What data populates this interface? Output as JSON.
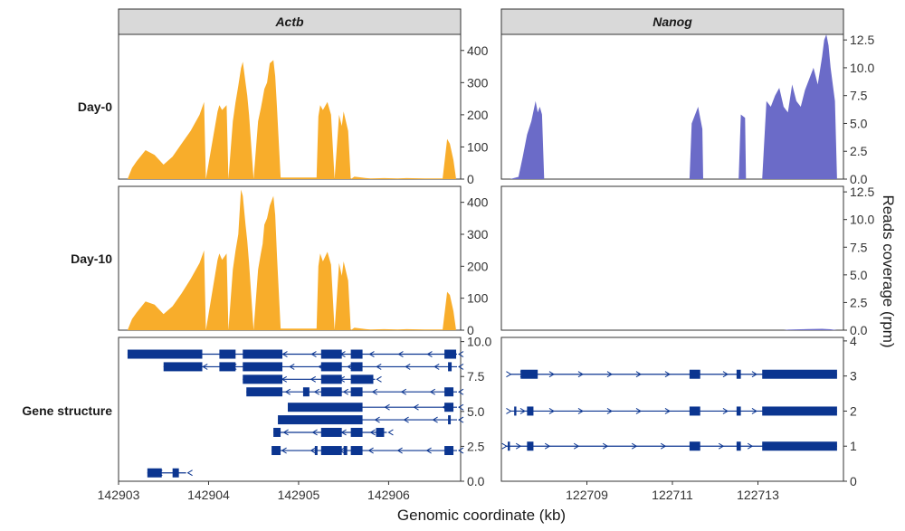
{
  "figure": {
    "x_axis_title": "Genomic coordinate (kb)",
    "y_axis_title": "Reads coverage (rpm)",
    "panel_titles": [
      "Actb",
      "Nanog"
    ],
    "row_labels": [
      "Day-0",
      "Day-10",
      "Gene structure"
    ]
  },
  "colors": {
    "actb_coverage": "#F8AD2B",
    "nanog_coverage": "#6B6BC8",
    "gene": "#0B3590",
    "strip_bg": "#D9D9D9"
  },
  "chart_data": [
    {
      "type": "area",
      "gene": "Actb",
      "condition": "Day-0",
      "ylim": [
        0,
        450
      ],
      "yticks": [
        "0",
        "100",
        "200",
        "300",
        "400"
      ],
      "x": [
        142903.1,
        142903.15,
        142903.2,
        142903.3,
        142903.4,
        142903.5,
        142903.6,
        142903.7,
        142903.8,
        142903.9,
        142903.95,
        142903.97,
        142904.1,
        142904.12,
        142904.15,
        142904.2,
        142904.22,
        142904.27,
        142904.3,
        142904.33,
        142904.36,
        142904.38,
        142904.41,
        142904.43,
        142904.45,
        142904.5,
        142904.55,
        142904.58,
        142904.6,
        142904.62,
        142904.65,
        142904.68,
        142904.72,
        142904.74,
        142904.76,
        142904.8,
        142904.85,
        142905.0,
        142905.2,
        142905.22,
        142905.24,
        142905.27,
        142905.32,
        142905.36,
        142905.4,
        142905.45,
        142905.48,
        142905.5,
        142905.55,
        142905.58,
        142905.62,
        142905.7,
        142905.75,
        142905.8,
        142905.95,
        142906.1,
        142906.2,
        142906.4,
        142906.6,
        142906.65,
        142906.68,
        142906.72,
        142906.75
      ],
      "values": [
        0,
        35,
        55,
        90,
        75,
        45,
        70,
        110,
        150,
        200,
        240,
        0,
        210,
        230,
        215,
        230,
        0,
        180,
        240,
        290,
        345,
        365,
        300,
        260,
        200,
        0,
        180,
        220,
        250,
        280,
        300,
        360,
        370,
        320,
        220,
        5,
        5,
        5,
        5,
        195,
        230,
        215,
        240,
        200,
        0,
        200,
        165,
        210,
        150,
        0,
        8,
        5,
        3,
        2,
        3,
        2,
        3,
        2,
        2,
        125,
        110,
        60,
        0
      ]
    },
    {
      "type": "area",
      "gene": "Actb",
      "condition": "Day-10",
      "ylim": [
        0,
        450
      ],
      "yticks": [
        "0",
        "100",
        "200",
        "300",
        "400"
      ],
      "x": [
        142903.1,
        142903.15,
        142903.2,
        142903.3,
        142903.4,
        142903.5,
        142903.6,
        142903.7,
        142903.8,
        142903.9,
        142903.95,
        142903.97,
        142904.1,
        142904.12,
        142904.15,
        142904.2,
        142904.22,
        142904.27,
        142904.3,
        142904.33,
        142904.36,
        142904.38,
        142904.41,
        142904.43,
        142904.45,
        142904.5,
        142904.55,
        142904.58,
        142904.6,
        142904.62,
        142904.65,
        142904.68,
        142904.72,
        142904.74,
        142904.76,
        142904.8,
        142904.85,
        142905.0,
        142905.2,
        142905.22,
        142905.24,
        142905.27,
        142905.32,
        142905.36,
        142905.4,
        142905.45,
        142905.48,
        142905.5,
        142905.55,
        142905.58,
        142905.62,
        142905.7,
        142905.75,
        142905.8,
        142905.95,
        142906.1,
        142906.2,
        142906.4,
        142906.6,
        142906.65,
        142906.68,
        142906.72,
        142906.75
      ],
      "values": [
        0,
        35,
        55,
        90,
        80,
        50,
        75,
        115,
        160,
        210,
        250,
        0,
        220,
        240,
        220,
        240,
        0,
        190,
        250,
        300,
        440,
        420,
        330,
        280,
        210,
        0,
        190,
        240,
        270,
        330,
        350,
        390,
        420,
        360,
        230,
        5,
        5,
        5,
        5,
        200,
        240,
        215,
        245,
        205,
        0,
        210,
        170,
        215,
        155,
        0,
        8,
        5,
        3,
        2,
        3,
        2,
        3,
        2,
        2,
        120,
        110,
        60,
        0
      ]
    },
    {
      "type": "area",
      "gene": "Nanog",
      "condition": "Day-0",
      "ylim": [
        0,
        13
      ],
      "yticks": [
        "0.0",
        "2.5",
        "5.0",
        "7.5",
        "10.0",
        "12.5"
      ],
      "x": [
        122707.2,
        122707.4,
        122707.5,
        122707.6,
        122707.7,
        122707.8,
        122707.85,
        122707.9,
        122707.95,
        122708.0,
        122711.4,
        122711.45,
        122711.55,
        122711.6,
        122711.65,
        122711.7,
        122711.72,
        122712.55,
        122712.6,
        122712.7,
        122712.72,
        122713.1,
        122713.2,
        122713.3,
        122713.4,
        122713.5,
        122713.6,
        122713.7,
        122713.8,
        122713.9,
        122714.0,
        122714.1,
        122714.2,
        122714.3,
        122714.4,
        122714.5,
        122714.55,
        122714.6,
        122714.65,
        122714.7,
        122714.75,
        122714.8,
        122714.85
      ],
      "values": [
        0,
        0.2,
        2,
        4,
        5.2,
        7,
        6,
        6.5,
        5.8,
        0,
        0,
        5,
        6,
        6.5,
        5.5,
        4.5,
        0,
        0,
        5.8,
        5.5,
        0,
        0,
        7,
        6.5,
        7.5,
        8.2,
        6.5,
        6,
        8.5,
        7,
        6.5,
        8,
        9,
        10,
        8.5,
        11,
        12.5,
        13,
        12,
        10,
        8.5,
        7,
        0
      ]
    },
    {
      "type": "area",
      "gene": "Nanog",
      "condition": "Day-10",
      "ylim": [
        0,
        13
      ],
      "yticks": [
        "0.0",
        "2.5",
        "5.0",
        "7.5",
        "10.0",
        "12.5"
      ],
      "x": [
        122707.2,
        122713.6,
        122713.7,
        122714.0,
        122714.2,
        122714.5,
        122714.7,
        122714.85
      ],
      "values": [
        0,
        0,
        0.05,
        0.08,
        0.1,
        0.12,
        0.08,
        0
      ]
    },
    {
      "type": "gene-structure",
      "gene": "Actb",
      "xlim": [
        142903.0,
        142906.8
      ],
      "ylim": [
        0,
        10.3
      ],
      "xticks": [
        "142903",
        "142904",
        "142905",
        "142906"
      ],
      "yticks": [
        "0.0",
        "2.5",
        "5.0",
        "7.5",
        "10.0"
      ],
      "strand": "-",
      "transcripts": [
        {
          "y": 9.1,
          "start": 142903.1,
          "end": 142906.76,
          "exons": [
            [
              142903.1,
              142903.93
            ],
            [
              142904.12,
              142904.3
            ],
            [
              142904.38,
              142904.82
            ],
            [
              142905.25,
              142905.48
            ],
            [
              142905.58,
              142905.71
            ],
            [
              142906.62,
              142906.75
            ]
          ]
        },
        {
          "y": 8.2,
          "start": 142903.5,
          "end": 142906.76,
          "exons": [
            [
              142903.5,
              142903.93
            ],
            [
              142904.12,
              142904.3
            ],
            [
              142904.38,
              142904.82
            ],
            [
              142905.25,
              142905.48
            ],
            [
              142905.58,
              142905.71
            ],
            [
              142906.66,
              142906.7
            ]
          ]
        },
        {
          "y": 7.3,
          "start": 142904.38,
          "end": 142905.85,
          "exons": [
            [
              142904.38,
              142904.82
            ],
            [
              142905.25,
              142905.48
            ],
            [
              142905.58,
              142905.83
            ]
          ]
        },
        {
          "y": 6.4,
          "start": 142904.42,
          "end": 142906.76,
          "exons": [
            [
              142904.42,
              142904.82
            ],
            [
              142905.05,
              142905.12
            ],
            [
              142905.25,
              142905.48
            ],
            [
              142905.58,
              142905.71
            ],
            [
              142906.62,
              142906.72
            ]
          ]
        },
        {
          "y": 5.3,
          "start": 142904.88,
          "end": 142906.76,
          "exons": [
            [
              142904.88,
              142905.71
            ],
            [
              142906.62,
              142906.72
            ]
          ]
        },
        {
          "y": 4.4,
          "start": 142904.77,
          "end": 142906.76,
          "exons": [
            [
              142904.77,
              142905.71
            ],
            [
              142906.66,
              142906.69
            ]
          ]
        },
        {
          "y": 3.5,
          "start": 142904.72,
          "end": 142905.98,
          "exons": [
            [
              142904.72,
              142904.8
            ],
            [
              142905.25,
              142905.48
            ],
            [
              142905.58,
              142905.71
            ],
            [
              142905.86,
              142905.95
            ]
          ]
        },
        {
          "y": 2.2,
          "start": 142904.7,
          "end": 142906.76,
          "exons": [
            [
              142904.7,
              142904.8
            ],
            [
              142905.18,
              142905.21
            ],
            [
              142905.25,
              142905.48
            ],
            [
              142905.5,
              142905.54
            ],
            [
              142905.58,
              142905.71
            ],
            [
              142906.62,
              142906.72
            ]
          ]
        },
        {
          "y": 0.6,
          "start": 142903.32,
          "end": 142903.75,
          "exons": [
            [
              142903.32,
              142903.48
            ],
            [
              142903.6,
              142903.67
            ]
          ]
        }
      ]
    },
    {
      "type": "gene-structure",
      "gene": "Nanog",
      "xlim": [
        122707.0,
        122715.0
      ],
      "ylim": [
        0,
        4.1
      ],
      "xticks": [
        "122709",
        "122711",
        "122713"
      ],
      "xtick_values": [
        122709,
        122711,
        122713
      ],
      "yticks": [
        "0",
        "1",
        "2",
        "3",
        "4"
      ],
      "strand": "+",
      "transcripts": [
        {
          "y": 3.05,
          "start": 122707.2,
          "end": 122714.85,
          "exons": [
            [
              122707.45,
              122707.85
            ],
            [
              122711.4,
              122711.65
            ],
            [
              122712.5,
              122712.6
            ],
            [
              122713.1,
              122714.85
            ]
          ]
        },
        {
          "y": 2.0,
          "start": 122707.2,
          "end": 122714.85,
          "exons": [
            [
              122707.3,
              122707.35
            ],
            [
              122707.6,
              122707.75
            ],
            [
              122711.4,
              122711.65
            ],
            [
              122712.5,
              122712.6
            ],
            [
              122713.1,
              122714.85
            ]
          ]
        },
        {
          "y": 1.0,
          "start": 122707.1,
          "end": 122714.85,
          "exons": [
            [
              122707.15,
              122707.2
            ],
            [
              122707.6,
              122707.75
            ],
            [
              122711.4,
              122711.65
            ],
            [
              122712.5,
              122712.6
            ],
            [
              122713.1,
              122714.85
            ]
          ]
        }
      ]
    }
  ]
}
